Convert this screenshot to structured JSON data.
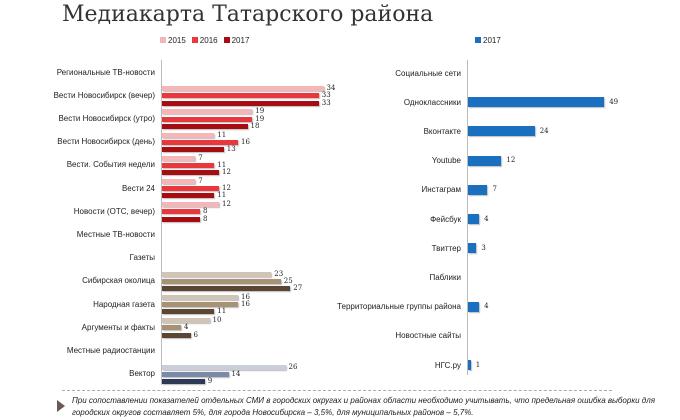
{
  "title": "Медиакарта Татарского района",
  "footnote": "При сопоставлении показателей отдельных СМИ в городских округах и районах области необходимо учитывать, что предельная ошибка выборки для городских округов составляет 5%, для города Новосибирска – 3,5%, для муниципальных районов – 5,7%.",
  "chart_data": [
    {
      "type": "bar",
      "orientation": "horizontal",
      "legend": [
        "2015",
        "2016",
        "2017"
      ],
      "legend_colors": [
        "#f4b6b8",
        "#e8383d",
        "#a50d12"
      ],
      "rows": [
        {
          "label": "Региональные ТВ-новости",
          "header": true
        },
        {
          "label": "Вести Новосибирск (вечер)",
          "values": [
            34,
            33,
            33
          ],
          "colors": [
            "#f4b6b8",
            "#e8383d",
            "#a50d12"
          ]
        },
        {
          "label": "Вести Новосибирск (утро)",
          "values": [
            19,
            19,
            18
          ],
          "colors": [
            "#f4b6b8",
            "#e8383d",
            "#a50d12"
          ]
        },
        {
          "label": "Вести Новосибирск (день)",
          "values": [
            11,
            16,
            13
          ],
          "colors": [
            "#f4b6b8",
            "#e8383d",
            "#a50d12"
          ]
        },
        {
          "label": "Вести. События недели",
          "values": [
            7,
            11,
            12
          ],
          "colors": [
            "#f4b6b8",
            "#e8383d",
            "#a50d12"
          ]
        },
        {
          "label": "Вести 24",
          "values": [
            7,
            12,
            11
          ],
          "colors": [
            "#f4b6b8",
            "#e8383d",
            "#a50d12"
          ]
        },
        {
          "label": "Новости (ОТС, вечер)",
          "values": [
            12,
            8,
            8
          ],
          "colors": [
            "#f4b6b8",
            "#e8383d",
            "#a50d12"
          ]
        },
        {
          "label": "Местные ТВ-новости",
          "header": true
        },
        {
          "label": "Газеты",
          "header": true
        },
        {
          "label": "Сибирская околица",
          "values": [
            23,
            25,
            27
          ],
          "colors": [
            "#cfc4b6",
            "#a89276",
            "#5a4632"
          ]
        },
        {
          "label": "Народная газета",
          "values": [
            16,
            16,
            11
          ],
          "colors": [
            "#cfc4b6",
            "#a89276",
            "#5a4632"
          ]
        },
        {
          "label": "Аргументы и факты",
          "values": [
            10,
            4,
            6
          ],
          "colors": [
            "#cfc4b6",
            "#a89276",
            "#5a4632"
          ]
        },
        {
          "label": "Местные радиостанции",
          "header": true
        },
        {
          "label": "Вектор",
          "values": [
            26,
            14,
            9
          ],
          "colors": [
            "#c9ced9",
            "#7b8aa8",
            "#2e3a55"
          ]
        }
      ]
    },
    {
      "type": "bar",
      "orientation": "horizontal",
      "legend": [
        "2017"
      ],
      "legend_colors": [
        "#1a6fbf"
      ],
      "rows": [
        {
          "label": "Социальные сети",
          "header": true
        },
        {
          "label": "Одноклассники",
          "value": 49
        },
        {
          "label": "Вконтакте",
          "value": 24
        },
        {
          "label": "Youtube",
          "value": 12
        },
        {
          "label": "Инстаграм",
          "value": 7
        },
        {
          "label": "Фейсбук",
          "value": 4
        },
        {
          "label": "Твиттер",
          "value": 3
        },
        {
          "label": "Паблики",
          "header": true
        },
        {
          "label": "Территориальные группы района",
          "value": 4
        },
        {
          "label": "Новостные сайты",
          "header": true
        },
        {
          "label": "НГС.ру",
          "value": 1
        }
      ]
    }
  ]
}
